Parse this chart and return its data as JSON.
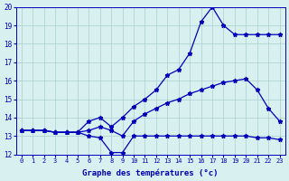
{
  "line_min_x": [
    0,
    1,
    2,
    3,
    4,
    5,
    6,
    7,
    8,
    9,
    10,
    11,
    12,
    13,
    14,
    15,
    16,
    17,
    18,
    19,
    20,
    21,
    22,
    23
  ],
  "line_min_y": [
    13.3,
    13.3,
    13.3,
    13.2,
    13.2,
    13.2,
    13.0,
    12.9,
    12.1,
    12.1,
    13.0,
    13.0,
    13.0,
    13.0,
    13.0,
    13.0,
    13.0,
    13.0,
    13.0,
    13.0,
    13.0,
    12.9,
    12.9,
    12.8
  ],
  "line_avg_x": [
    0,
    1,
    2,
    3,
    4,
    5,
    6,
    7,
    8,
    9,
    10,
    11,
    12,
    13,
    14,
    15,
    16,
    17,
    18,
    19,
    20,
    21,
    22,
    23
  ],
  "line_avg_y": [
    13.3,
    13.3,
    13.3,
    13.2,
    13.2,
    13.2,
    13.3,
    13.5,
    13.3,
    13.0,
    13.8,
    14.2,
    14.5,
    14.8,
    15.0,
    15.3,
    15.5,
    15.7,
    15.9,
    16.0,
    16.1,
    15.5,
    14.5,
    13.8
  ],
  "line_max_x": [
    0,
    1,
    2,
    3,
    4,
    5,
    6,
    7,
    8,
    9,
    10,
    11,
    12,
    13,
    14,
    15,
    16,
    17,
    18,
    19,
    20,
    21,
    22,
    23
  ],
  "line_max_y": [
    13.3,
    13.3,
    13.3,
    13.2,
    13.2,
    13.2,
    13.8,
    14.0,
    13.5,
    14.0,
    14.6,
    15.0,
    15.5,
    16.3,
    16.6,
    17.5,
    19.2,
    20.0,
    19.0,
    18.5,
    18.5,
    18.5,
    18.5,
    18.5
  ],
  "line_color": "#0000bb",
  "bg_color": "#d8f0f0",
  "grid_color": "#aacece",
  "xlabel": "Graphe des températures (°c)",
  "xlim": [
    -0.5,
    23.5
  ],
  "ylim": [
    12,
    20
  ],
  "yticks": [
    12,
    13,
    14,
    15,
    16,
    17,
    18,
    19,
    20
  ],
  "xticks": [
    0,
    1,
    2,
    3,
    4,
    5,
    6,
    7,
    8,
    9,
    10,
    11,
    12,
    13,
    14,
    15,
    16,
    17,
    18,
    19,
    20,
    21,
    22,
    23
  ]
}
